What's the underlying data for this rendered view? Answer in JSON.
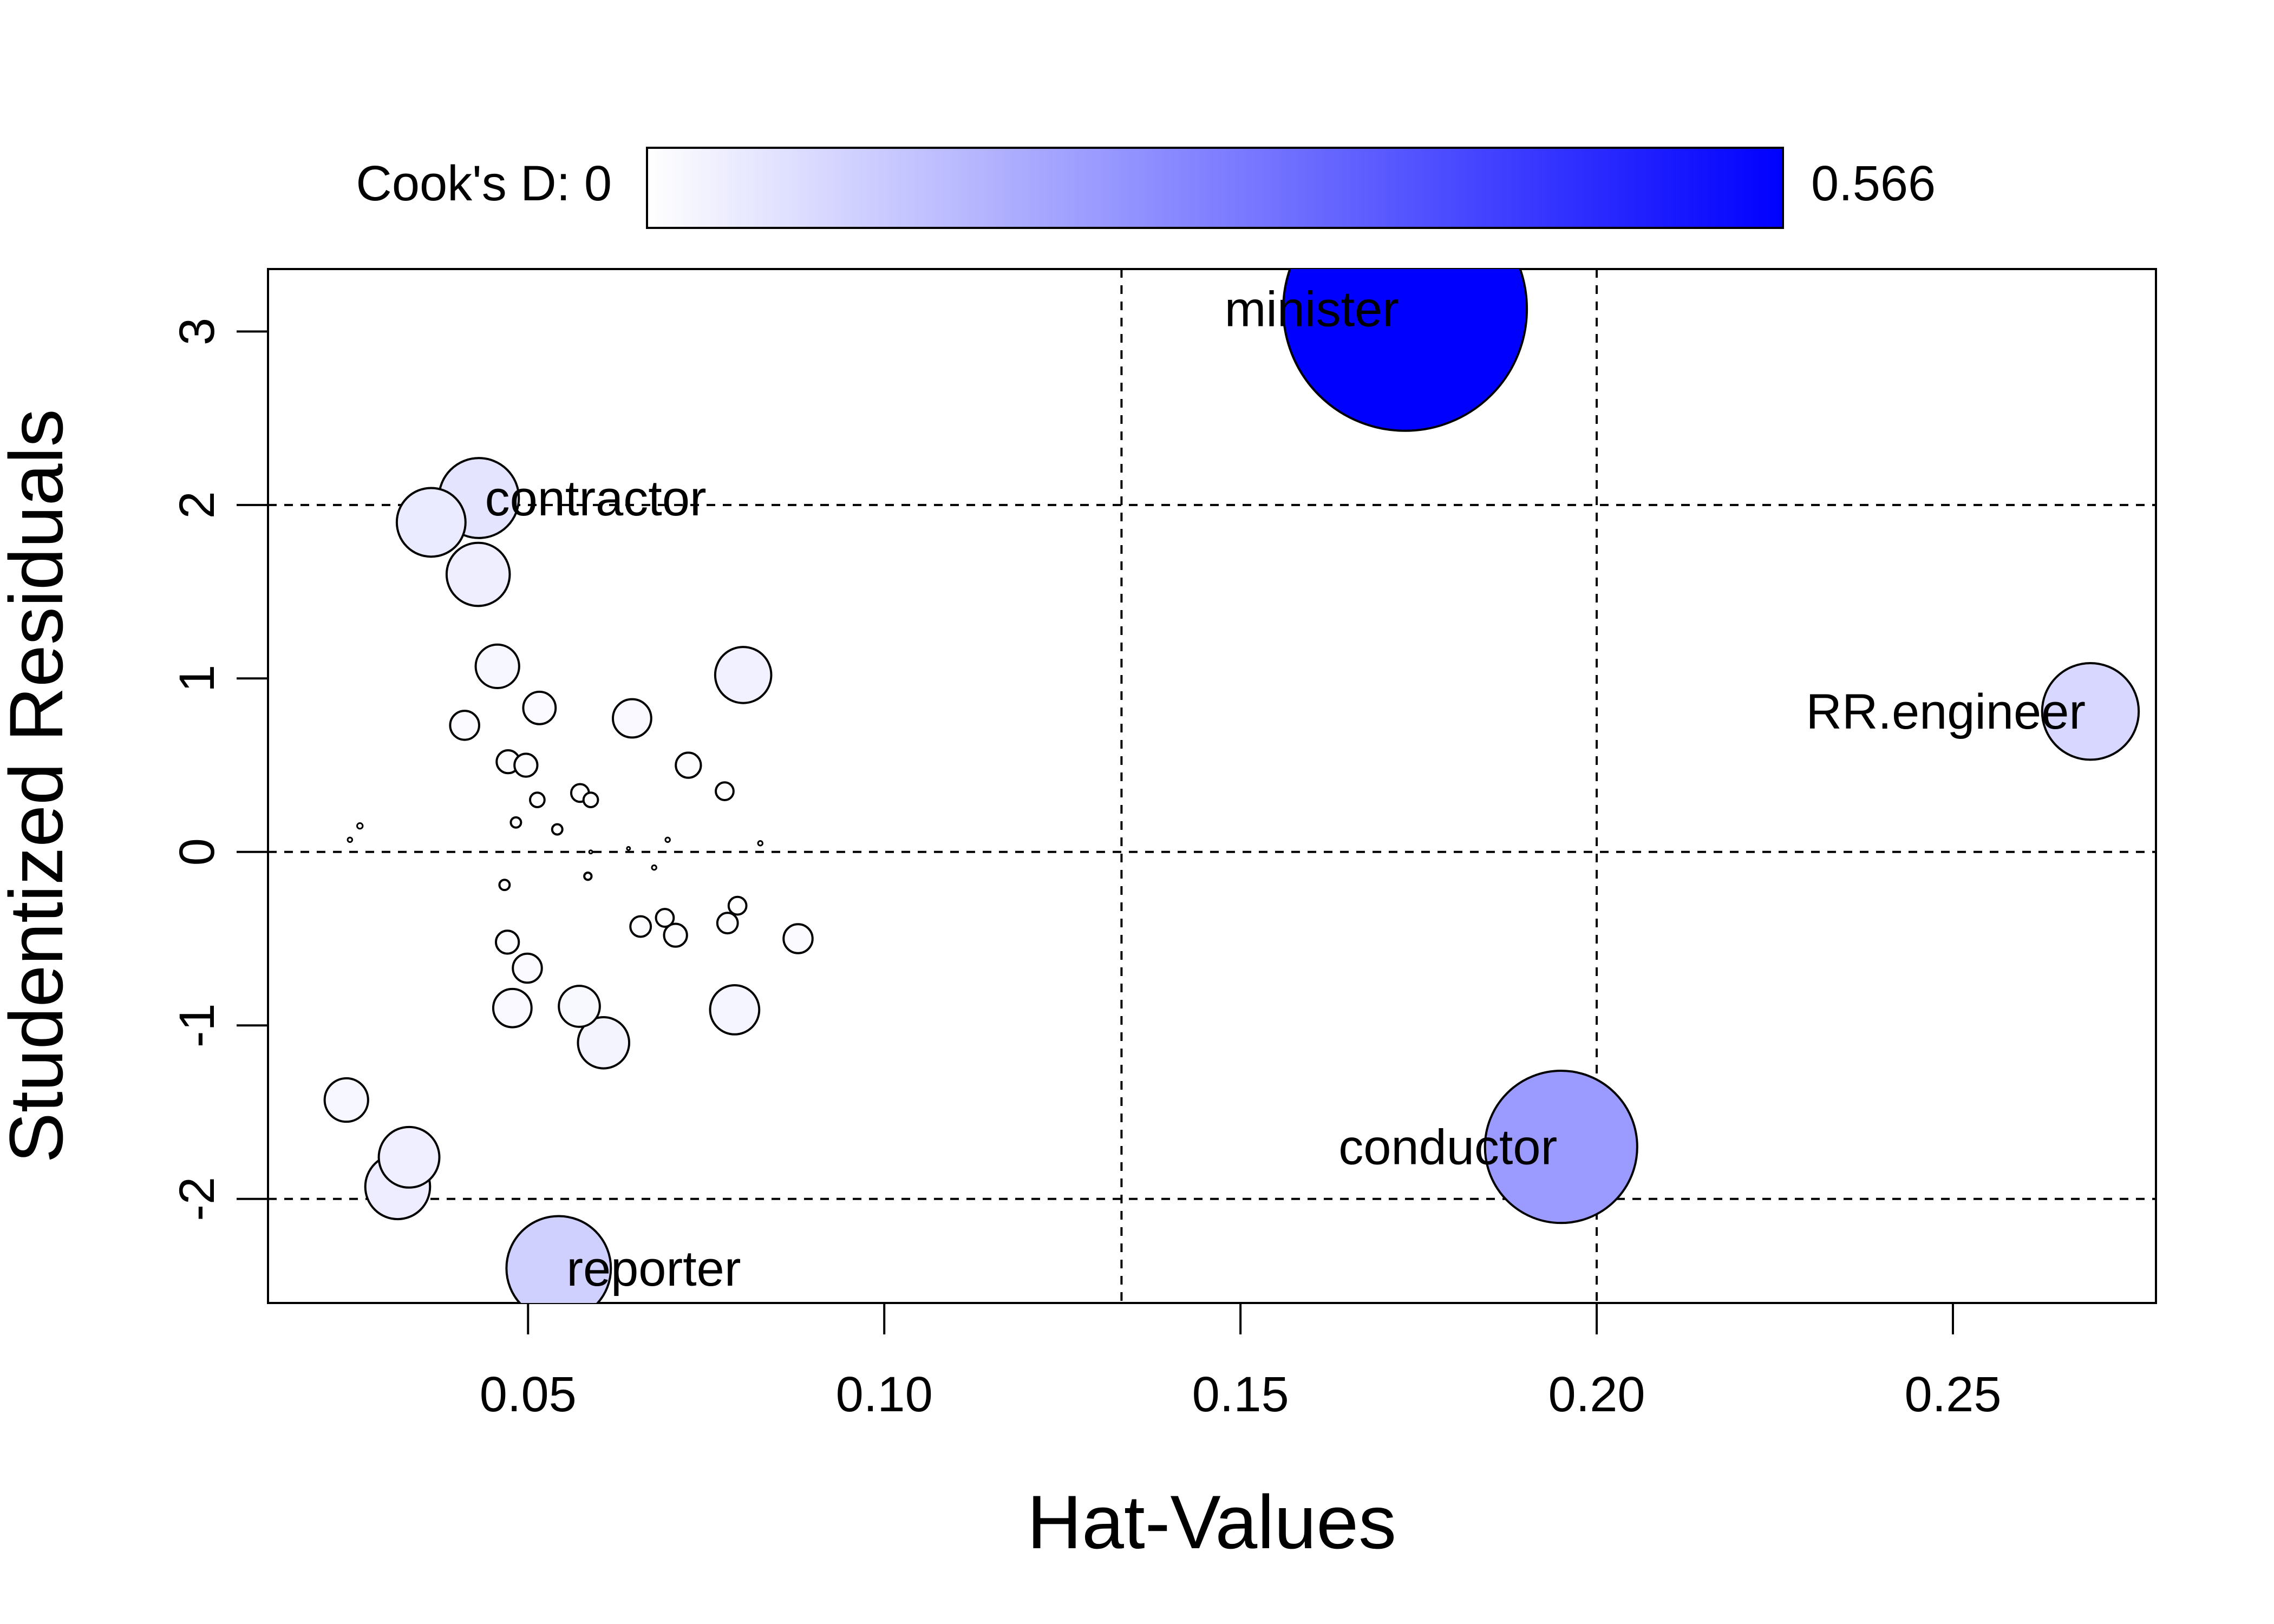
{
  "chart_data": {
    "type": "scatter",
    "title": "",
    "xlabel": "Hat-Values",
    "ylabel": "Studentized Residuals",
    "xlim": [
      0.0135,
      0.2785
    ],
    "ylim": [
      -2.6,
      3.36
    ],
    "x_ticks": [
      0.05,
      0.1,
      0.15,
      0.2,
      0.25
    ],
    "x_tick_labels": [
      "0.05",
      "0.10",
      "0.15",
      "0.20",
      "0.25"
    ],
    "y_ticks": [
      -2,
      -1,
      0,
      1,
      2,
      3
    ],
    "y_tick_labels": [
      "-2",
      "-1",
      "0",
      "1",
      "2",
      "3"
    ],
    "reference_lines": {
      "vertical": [
        0.1333,
        0.2
      ],
      "horizontal": [
        -2,
        0,
        2
      ],
      "style": "dashed"
    },
    "color_scale": {
      "label_left": "Cook's D: 0",
      "label_right": "0.566",
      "min": 0,
      "max": 0.566,
      "color_low": "#ffffff",
      "color_high": "#0000ff"
    },
    "series": [
      {
        "points": [
          {
            "x": 0.1731,
            "y": 3.13,
            "cooksd": 0.566,
            "label": "minister"
          },
          {
            "x": 0.195,
            "y": -1.7,
            "cooksd": 0.221,
            "label": "conductor"
          },
          {
            "x": 0.2693,
            "y": 0.81,
            "cooksd": 0.089,
            "label": "RR.engineer"
          },
          {
            "x": 0.0543,
            "y": -2.4,
            "cooksd": 0.104,
            "label": "reporter"
          },
          {
            "x": 0.0431,
            "y": 2.04,
            "cooksd": 0.061,
            "label": "contractor"
          },
          {
            "x": 0.0364,
            "y": 1.9,
            "cooksd": 0.045,
            "label": ""
          },
          {
            "x": 0.043,
            "y": 1.6,
            "cooksd": 0.038,
            "label": ""
          },
          {
            "x": 0.0333,
            "y": -1.76,
            "cooksd": 0.035,
            "label": ""
          },
          {
            "x": 0.0317,
            "y": -1.93,
            "cooksd": 0.04,
            "label": ""
          },
          {
            "x": 0.0245,
            "y": -1.43,
            "cooksd": 0.018,
            "label": ""
          },
          {
            "x": 0.0802,
            "y": 1.02,
            "cooksd": 0.03,
            "label": ""
          },
          {
            "x": 0.0457,
            "y": 1.07,
            "cooksd": 0.018,
            "label": ""
          },
          {
            "x": 0.079,
            "y": -0.91,
            "cooksd": 0.023,
            "label": ""
          },
          {
            "x": 0.0606,
            "y": -1.1,
            "cooksd": 0.025,
            "label": ""
          },
          {
            "x": 0.0646,
            "y": 0.77,
            "cooksd": 0.014,
            "label": ""
          },
          {
            "x": 0.0572,
            "y": -0.89,
            "cooksd": 0.016,
            "label": ""
          },
          {
            "x": 0.0478,
            "y": -0.9,
            "cooksd": 0.014,
            "label": ""
          },
          {
            "x": 0.0516,
            "y": 0.83,
            "cooksd": 0.01,
            "label": ""
          },
          {
            "x": 0.0411,
            "y": 0.73,
            "cooksd": 0.008,
            "label": ""
          },
          {
            "x": 0.0499,
            "y": -0.67,
            "cooksd": 0.008,
            "label": ""
          },
          {
            "x": 0.0879,
            "y": -0.5,
            "cooksd": 0.008,
            "label": ""
          },
          {
            "x": 0.0725,
            "y": 0.5,
            "cooksd": 0.006,
            "label": ""
          },
          {
            "x": 0.0472,
            "y": 0.52,
            "cooksd": 0.005,
            "label": ""
          },
          {
            "x": 0.0497,
            "y": 0.5,
            "cooksd": 0.005,
            "label": ""
          },
          {
            "x": 0.0471,
            "y": -0.52,
            "cooksd": 0.005,
            "label": ""
          },
          {
            "x": 0.0707,
            "y": -0.48,
            "cooksd": 0.005,
            "label": ""
          },
          {
            "x": 0.0658,
            "y": -0.43,
            "cooksd": 0.004,
            "label": ""
          },
          {
            "x": 0.078,
            "y": -0.41,
            "cooksd": 0.004,
            "label": ""
          },
          {
            "x": 0.0692,
            "y": -0.38,
            "cooksd": 0.003,
            "label": ""
          },
          {
            "x": 0.0776,
            "y": 0.35,
            "cooksd": 0.003,
            "label": ""
          },
          {
            "x": 0.0573,
            "y": 0.34,
            "cooksd": 0.003,
            "label": ""
          },
          {
            "x": 0.0794,
            "y": -0.31,
            "cooksd": 0.003,
            "label": ""
          },
          {
            "x": 0.0588,
            "y": 0.3,
            "cooksd": 0.002,
            "label": ""
          },
          {
            "x": 0.0513,
            "y": 0.3,
            "cooksd": 0.002,
            "label": ""
          },
          {
            "x": 0.0483,
            "y": 0.17,
            "cooksd": 0.001,
            "label": ""
          },
          {
            "x": 0.0541,
            "y": 0.13,
            "cooksd": 0.001,
            "label": ""
          },
          {
            "x": 0.0467,
            "y": -0.19,
            "cooksd": 0.001,
            "label": ""
          },
          {
            "x": 0.0584,
            "y": -0.14,
            "cooksd": 0.0005,
            "label": ""
          },
          {
            "x": 0.0264,
            "y": 0.15,
            "cooksd": 0.0003,
            "label": ""
          },
          {
            "x": 0.025,
            "y": 0.07,
            "cooksd": 0.0002,
            "label": ""
          },
          {
            "x": 0.0696,
            "y": 0.07,
            "cooksd": 0.0002,
            "label": ""
          },
          {
            "x": 0.0677,
            "y": -0.09,
            "cooksd": 0.0002,
            "label": ""
          },
          {
            "x": 0.0826,
            "y": 0.05,
            "cooksd": 0.0002,
            "label": ""
          },
          {
            "x": 0.0641,
            "y": 0.02,
            "cooksd": 0.0001,
            "label": ""
          },
          {
            "x": 0.0588,
            "y": 0.0,
            "cooksd": 0.0001,
            "label": ""
          }
        ]
      }
    ],
    "grid": false,
    "legend": "top"
  }
}
